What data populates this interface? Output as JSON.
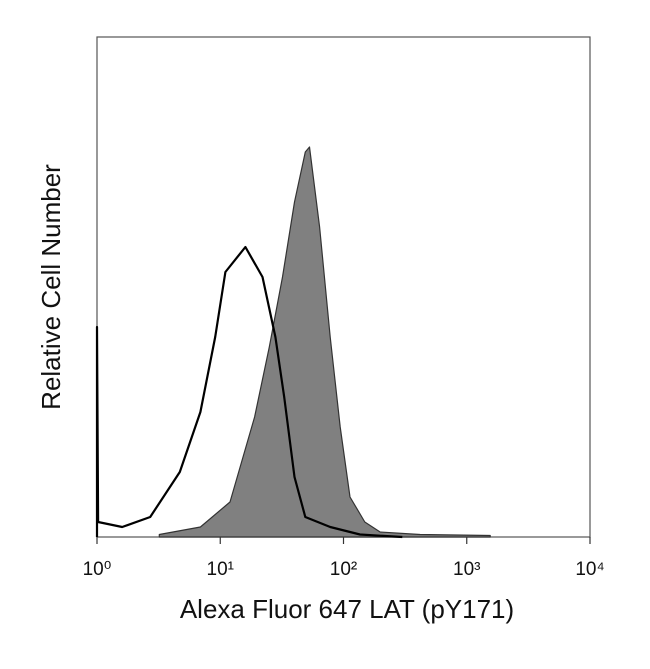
{
  "chart_data": {
    "type": "histogram-overlay",
    "xlabel": "Alexa Fluor 647 LAT (pY171)",
    "ylabel": "Relative Cell Number",
    "xscale": "log",
    "xlim": [
      1,
      10000
    ],
    "xticks": [
      {
        "value": 1,
        "label": "10⁰"
      },
      {
        "value": 10,
        "label": "10¹"
      },
      {
        "value": 100,
        "label": "10²"
      },
      {
        "value": 1000,
        "label": "10³"
      },
      {
        "value": 10000,
        "label": "10⁴"
      }
    ],
    "ylim": [
      0,
      100
    ],
    "series": [
      {
        "color": "#808080",
        "filled": true,
        "x": [
          3.2,
          6.9,
          12,
          19,
          25,
          32,
          40,
          49,
          53,
          64,
          78,
          94,
          113,
          149,
          198,
          418,
          1550
        ],
        "values": [
          0.5,
          2,
          7,
          24,
          38,
          52,
          67,
          77,
          78,
          62,
          40,
          22,
          8,
          3,
          1,
          0.5,
          0.3
        ]
      },
      {
        "color": "#000000",
        "filled": false,
        "x": [
          1,
          1,
          1.02,
          1.6,
          2.7,
          4.7,
          6.9,
          9.1,
          11,
          16,
          22,
          28,
          33,
          40,
          49,
          78,
          136,
          300
        ],
        "values": [
          0,
          42,
          3,
          2,
          4,
          13,
          25,
          40,
          53,
          58,
          52,
          40,
          28,
          12,
          4,
          2,
          0.5,
          0
        ]
      }
    ]
  }
}
